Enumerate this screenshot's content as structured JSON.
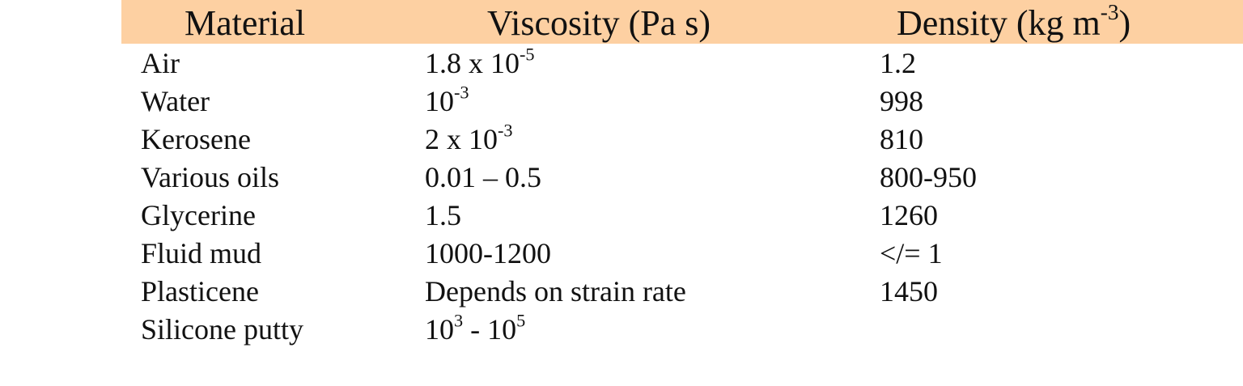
{
  "colors": {
    "header_background": "#fdd0a2",
    "text": "#111111",
    "page_background": "#ffffff"
  },
  "header": {
    "material": "Material",
    "viscosity": "Viscosity (Pa s)",
    "density_base": "Density (kg m",
    "density_exp": "-3",
    "density_close": ")"
  },
  "rows": [
    {
      "material": "Air",
      "viscosity": {
        "base": "1.8 x 10",
        "exp": "-5",
        "tail": "",
        "exp2": ""
      },
      "density": "1.2"
    },
    {
      "material": "Water",
      "viscosity": {
        "base": "10",
        "exp": "-3",
        "tail": "",
        "exp2": ""
      },
      "density": "998"
    },
    {
      "material": "Kerosene",
      "viscosity": {
        "base": "2 x 10",
        "exp": "-3",
        "tail": "",
        "exp2": ""
      },
      "density": "810"
    },
    {
      "material": "Various oils",
      "viscosity": {
        "base": "0.01 – 0.5",
        "exp": "",
        "tail": "",
        "exp2": ""
      },
      "density": "800-950"
    },
    {
      "material": "Glycerine",
      "viscosity": {
        "base": "1.5",
        "exp": "",
        "tail": "",
        "exp2": ""
      },
      "density": "1260"
    },
    {
      "material": "Fluid mud",
      "viscosity": {
        "base": "1000-1200",
        "exp": "",
        "tail": "",
        "exp2": ""
      },
      "density": "</= 1"
    },
    {
      "material": "Plasticene",
      "viscosity": {
        "base": "Depends on strain rate",
        "exp": "",
        "tail": "",
        "exp2": ""
      },
      "density": "1450"
    },
    {
      "material": "Silicone putty",
      "viscosity": {
        "base": "10",
        "exp": "3",
        "tail": " - 10",
        "exp2": "5"
      },
      "density": ""
    }
  ]
}
